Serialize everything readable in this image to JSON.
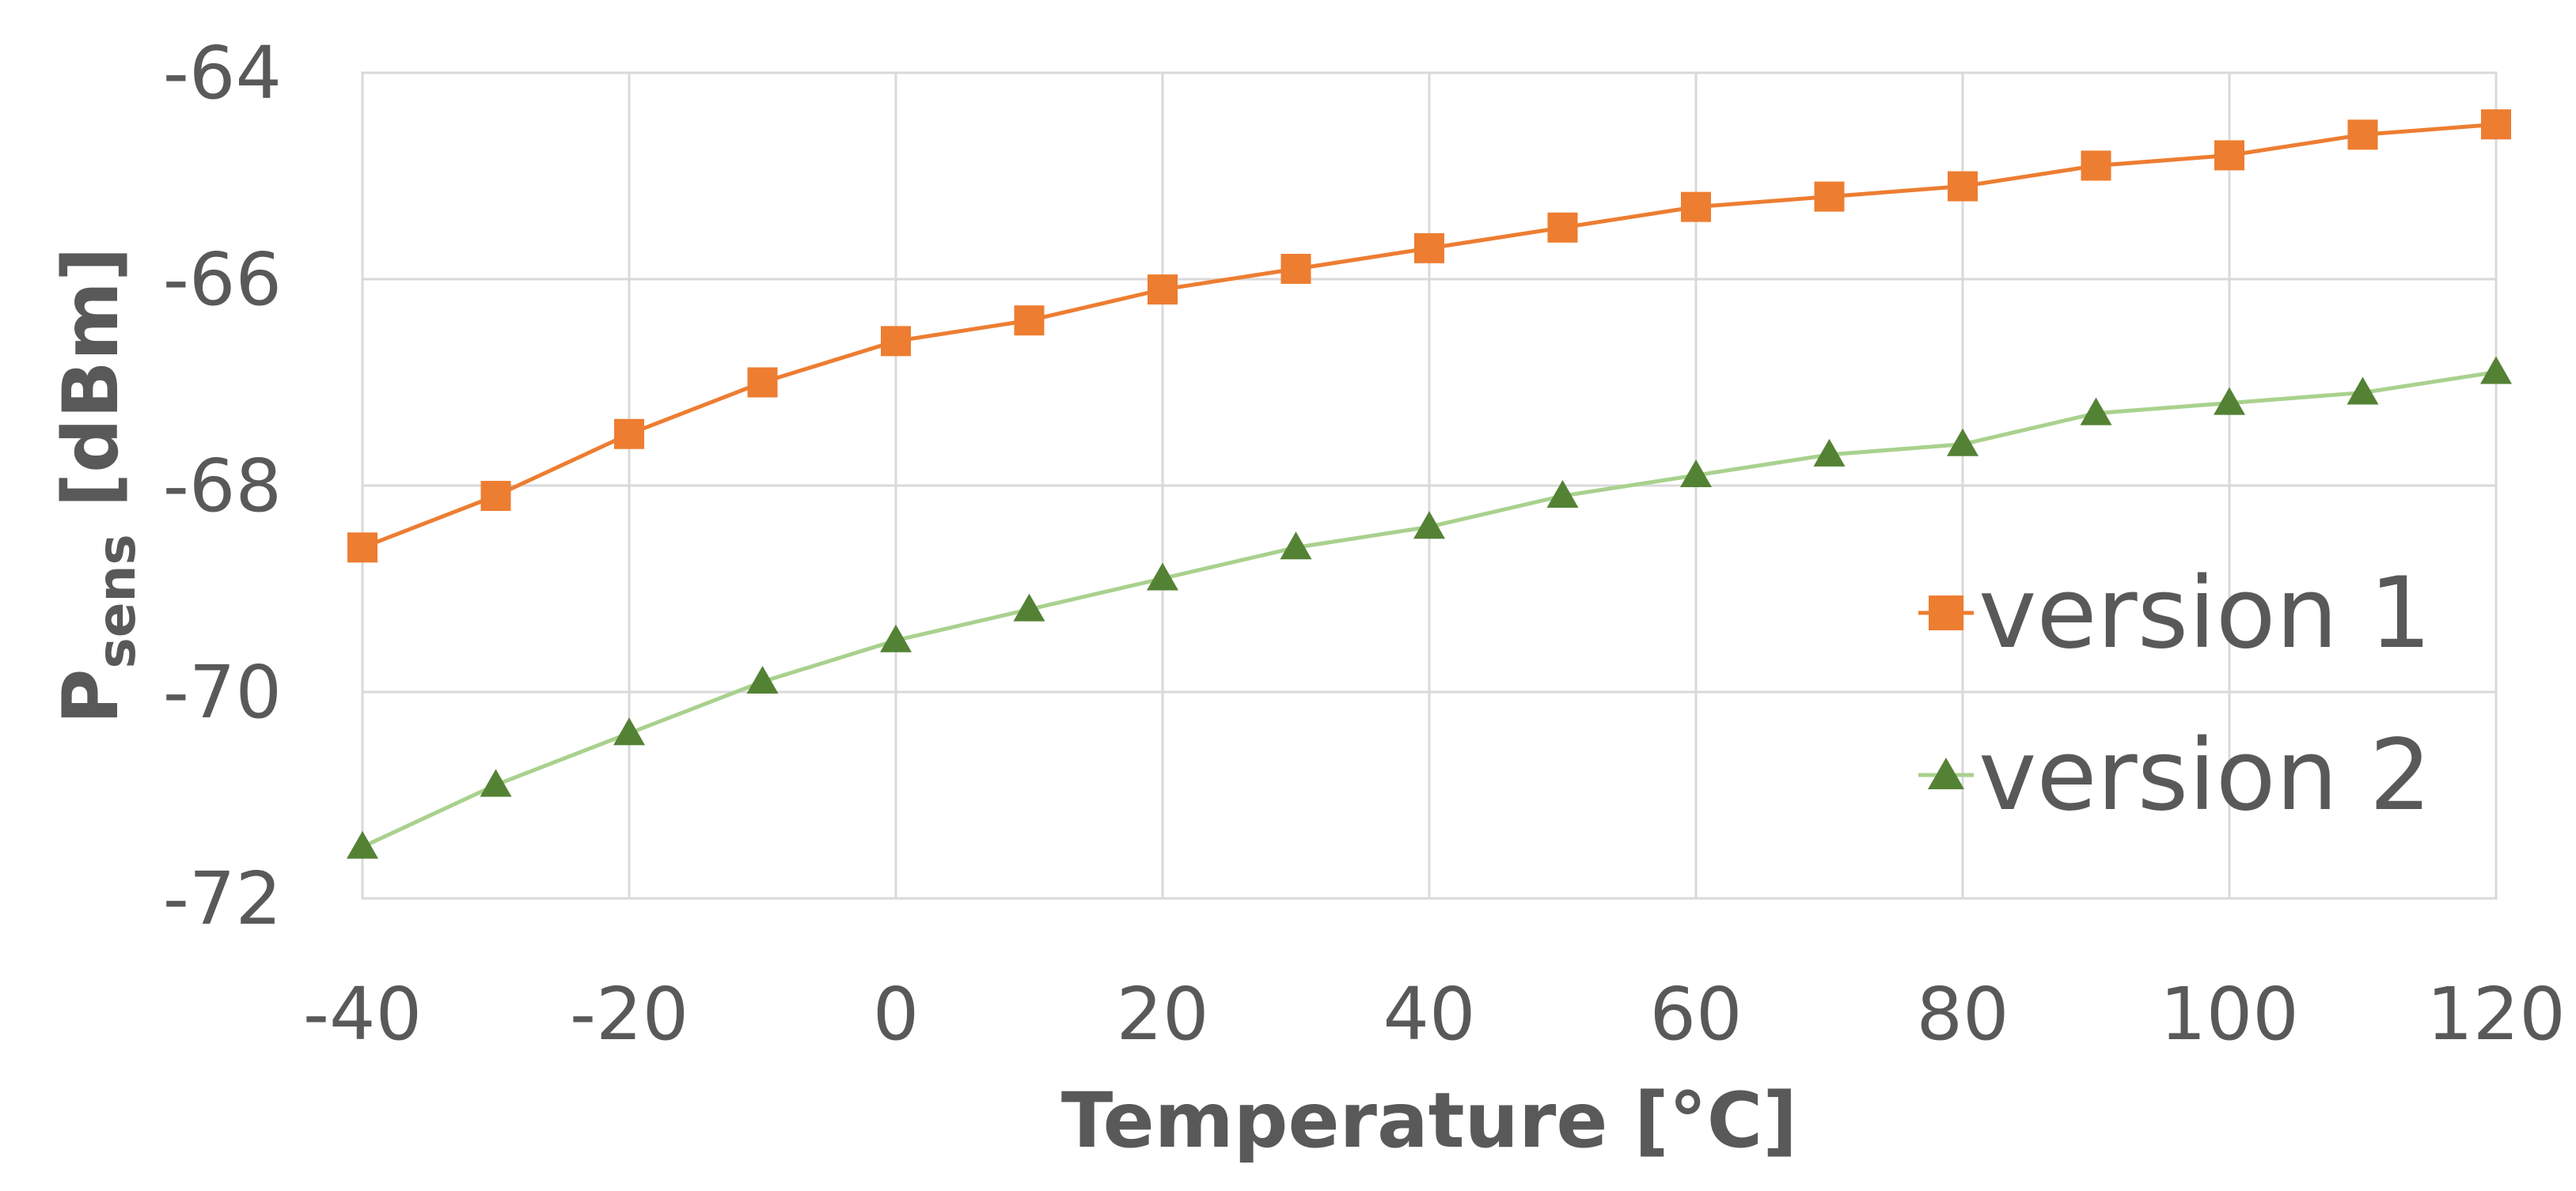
{
  "chart_data": {
    "type": "line",
    "title": "",
    "xlabel": "Temperature [°C]",
    "ylabel": {
      "main": "P",
      "sub": "sens",
      "unit": " [dBm]"
    },
    "xlim": [
      -40,
      120
    ],
    "ylim": [
      -72,
      -64
    ],
    "x_ticks": [
      "-40",
      "-20",
      "0",
      "20",
      "40",
      "60",
      "80",
      "100",
      "120"
    ],
    "y_ticks": [
      "-64",
      "-66",
      "-68",
      "-70",
      "-72"
    ],
    "x_tick_values": [
      -40,
      -20,
      0,
      20,
      40,
      60,
      80,
      100,
      120
    ],
    "y_tick_values": [
      -64,
      -66,
      -68,
      -70,
      -72
    ],
    "x": [
      -40,
      -30,
      -20,
      -10,
      0,
      10,
      20,
      30,
      40,
      50,
      60,
      70,
      80,
      90,
      100,
      110,
      120
    ],
    "grid": true,
    "legend_position": "right",
    "series": [
      {
        "name": "version 1",
        "marker": "square",
        "line_color": "#ed7d31",
        "marker_color": "#ed7d31",
        "values": [
          -68.6,
          -68.1,
          -67.5,
          -67.0,
          -66.6,
          -66.4,
          -66.1,
          -65.9,
          -65.7,
          -65.5,
          -65.3,
          -65.2,
          -65.1,
          -64.9,
          -64.8,
          -64.6,
          -64.5
        ]
      },
      {
        "name": "version 2",
        "marker": "triangle",
        "line_color": "#a9d18e",
        "marker_color": "#548235",
        "values": [
          -71.5,
          -70.9,
          -70.4,
          -69.9,
          -69.5,
          -69.2,
          -68.9,
          -68.6,
          -68.4,
          -68.1,
          -67.9,
          -67.7,
          -67.6,
          -67.3,
          -67.2,
          -67.1,
          -66.9
        ]
      }
    ]
  }
}
